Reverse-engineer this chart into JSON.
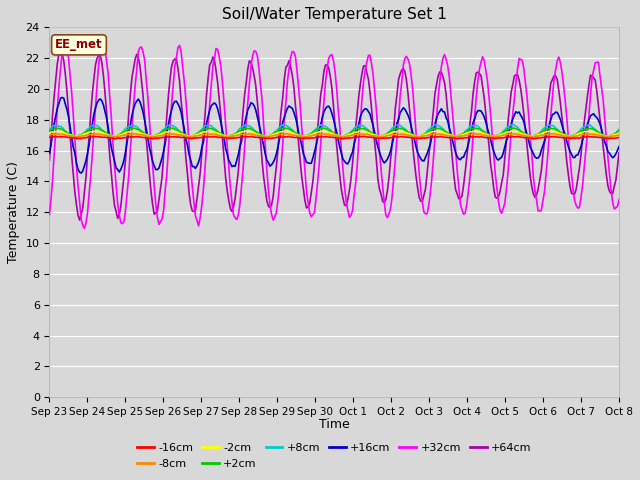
{
  "title": "Soil/Water Temperature Set 1",
  "xlabel": "Time",
  "ylabel": "Temperature (C)",
  "ylim": [
    0,
    24
  ],
  "yticks": [
    0,
    2,
    4,
    6,
    8,
    10,
    12,
    14,
    16,
    18,
    20,
    22,
    24
  ],
  "x_labels": [
    "Sep 23",
    "Sep 24",
    "Sep 25",
    "Sep 26",
    "Sep 27",
    "Sep 28",
    "Sep 29",
    "Sep 30",
    "Oct 1",
    "Oct 2",
    "Oct 3",
    "Oct 4",
    "Oct 5",
    "Oct 6",
    "Oct 7",
    "Oct 8"
  ],
  "legend_labels": [
    "-16cm",
    "-8cm",
    "-2cm",
    "+2cm",
    "+8cm",
    "+16cm",
    "+32cm",
    "+64cm"
  ],
  "legend_colors": [
    "#ff0000",
    "#ff8800",
    "#ffff00",
    "#00cc00",
    "#00cccc",
    "#0000cc",
    "#ff00ff",
    "#aa00aa"
  ],
  "watermark_text": "EE_met",
  "background_color": "#d8d8d8",
  "plot_bg_color": "#d8d8d8",
  "grid_color": "#ffffff",
  "figsize": [
    6.4,
    4.8
  ],
  "dpi": 100
}
